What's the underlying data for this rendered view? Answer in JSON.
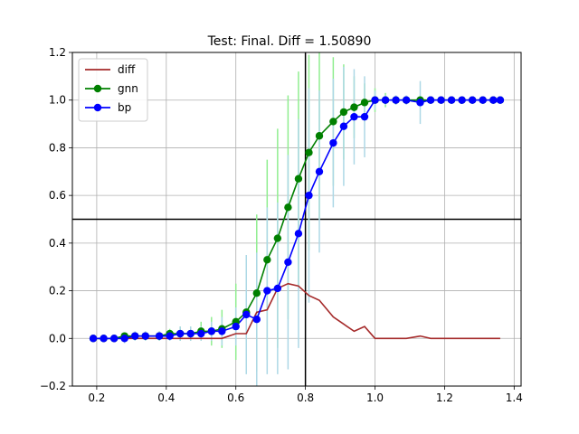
{
  "chart_data": {
    "type": "line",
    "title": "Test: Final. Diff = 1.50890",
    "xlabel": "",
    "ylabel": "",
    "xlim": [
      0.13,
      1.42
    ],
    "ylim": [
      -0.2,
      1.2
    ],
    "x_ticks": [
      0.2,
      0.4,
      0.6,
      0.8,
      1.0,
      1.2,
      1.4
    ],
    "y_ticks": [
      -0.2,
      0.0,
      0.2,
      0.4,
      0.6,
      0.8,
      1.0,
      1.2
    ],
    "x_tick_labels": [
      "0.2",
      "0.4",
      "0.6",
      "0.8",
      "1.0",
      "1.2",
      "1.4"
    ],
    "y_tick_labels": [
      "−0.2",
      "0.0",
      "0.2",
      "0.4",
      "0.6",
      "0.8",
      "1.0",
      "1.2"
    ],
    "grid": true,
    "legend_position": "top-left",
    "reference_lines": {
      "horizontal_y": 0.5,
      "vertical_x": 0.8,
      "color": "#000000"
    },
    "series": [
      {
        "name": "diff",
        "color": "#a52a2a",
        "marker": "none",
        "x": [
          0.19,
          0.22,
          0.25,
          0.28,
          0.31,
          0.34,
          0.38,
          0.41,
          0.44,
          0.47,
          0.5,
          0.53,
          0.56,
          0.6,
          0.63,
          0.66,
          0.69,
          0.72,
          0.75,
          0.78,
          0.81,
          0.84,
          0.88,
          0.91,
          0.94,
          0.97,
          1.0,
          1.03,
          1.06,
          1.09,
          1.13,
          1.16,
          1.19,
          1.22,
          1.25,
          1.28,
          1.31,
          1.34,
          1.36
        ],
        "y": [
          0.0,
          0.0,
          0.0,
          0.0,
          0.0,
          0.0,
          0.0,
          0.0,
          0.0,
          0.0,
          0.0,
          0.0,
          0.0,
          0.02,
          0.02,
          0.11,
          0.12,
          0.21,
          0.23,
          0.22,
          0.18,
          0.16,
          0.09,
          0.06,
          0.03,
          0.05,
          0.0,
          0.0,
          0.0,
          0.0,
          0.01,
          0.0,
          0.0,
          0.0,
          0.0,
          0.0,
          0.0,
          0.0,
          0.0
        ]
      },
      {
        "name": "gnn",
        "color": "#008000",
        "errcolor": "#90ee90",
        "marker": "circle",
        "x": [
          0.19,
          0.22,
          0.25,
          0.28,
          0.31,
          0.34,
          0.38,
          0.41,
          0.44,
          0.47,
          0.5,
          0.53,
          0.56,
          0.6,
          0.63,
          0.66,
          0.69,
          0.72,
          0.75,
          0.78,
          0.81,
          0.84,
          0.88,
          0.91,
          0.94,
          0.97,
          1.0,
          1.03,
          1.06,
          1.09,
          1.13,
          1.16,
          1.19,
          1.22,
          1.25,
          1.28,
          1.31,
          1.34,
          1.36
        ],
        "y": [
          0.0,
          0.0,
          0.0,
          0.01,
          0.01,
          0.01,
          0.01,
          0.02,
          0.02,
          0.02,
          0.03,
          0.03,
          0.04,
          0.07,
          0.11,
          0.19,
          0.33,
          0.42,
          0.55,
          0.67,
          0.78,
          0.85,
          0.91,
          0.95,
          0.97,
          0.99,
          1.0,
          1.0,
          1.0,
          1.0,
          1.0,
          1.0,
          1.0,
          1.0,
          1.0,
          1.0,
          1.0,
          1.0,
          1.0
        ],
        "err": [
          0.01,
          0.01,
          0.01,
          0.01,
          0.01,
          0.02,
          0.02,
          0.02,
          0.03,
          0.03,
          0.04,
          0.06,
          0.08,
          0.16,
          0.22,
          0.33,
          0.42,
          0.46,
          0.47,
          0.45,
          0.41,
          0.35,
          0.27,
          0.2,
          0.13,
          0.08,
          0.05,
          0.03,
          0.02,
          0.01,
          0.01,
          0.0,
          0.0,
          0.0,
          0.0,
          0.0,
          0.0,
          0.0,
          0.0
        ]
      },
      {
        "name": "bp",
        "color": "#0000ff",
        "errcolor": "#add8e6",
        "marker": "circle",
        "x": [
          0.19,
          0.22,
          0.25,
          0.28,
          0.31,
          0.34,
          0.38,
          0.41,
          0.44,
          0.47,
          0.5,
          0.53,
          0.56,
          0.6,
          0.63,
          0.66,
          0.69,
          0.72,
          0.75,
          0.78,
          0.81,
          0.84,
          0.88,
          0.91,
          0.94,
          0.97,
          1.0,
          1.03,
          1.06,
          1.09,
          1.13,
          1.16,
          1.19,
          1.22,
          1.25,
          1.28,
          1.31,
          1.34,
          1.36
        ],
        "y": [
          0.0,
          0.0,
          0.0,
          0.0,
          0.01,
          0.01,
          0.01,
          0.01,
          0.02,
          0.02,
          0.02,
          0.03,
          0.03,
          0.05,
          0.1,
          0.08,
          0.2,
          0.21,
          0.32,
          0.44,
          0.6,
          0.7,
          0.82,
          0.89,
          0.93,
          0.93,
          1.0,
          1.0,
          1.0,
          1.0,
          0.99,
          1.0,
          1.0,
          1.0,
          1.0,
          1.0,
          1.0,
          1.0,
          1.0
        ],
        "err": [
          0.01,
          0.01,
          0.01,
          0.02,
          0.02,
          0.02,
          0.02,
          0.02,
          0.03,
          0.03,
          0.03,
          0.04,
          0.06,
          0.08,
          0.25,
          0.28,
          0.35,
          0.36,
          0.45,
          0.48,
          0.45,
          0.34,
          0.27,
          0.25,
          0.2,
          0.17,
          0.04,
          0.02,
          0.02,
          0.02,
          0.09,
          0.0,
          0.0,
          0.0,
          0.0,
          0.0,
          0.0,
          0.0,
          0.0
        ]
      }
    ]
  }
}
